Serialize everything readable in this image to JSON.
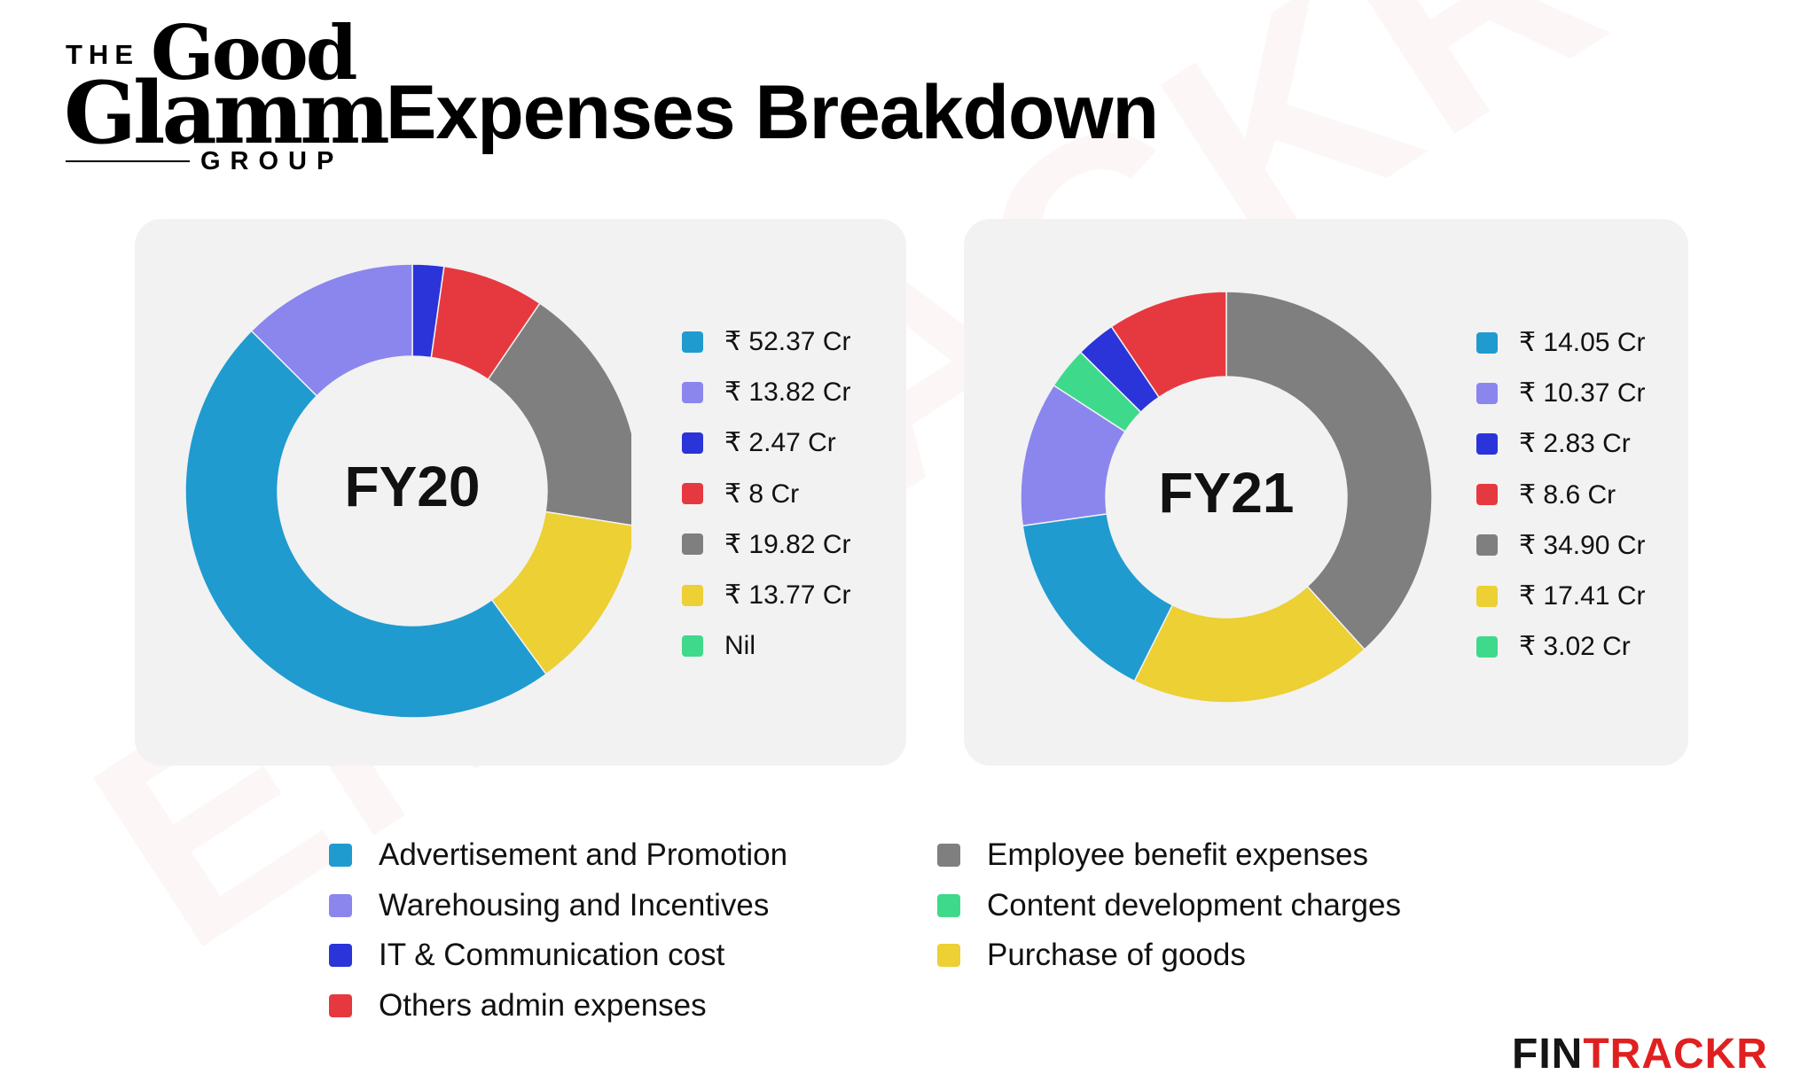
{
  "logo": {
    "the": "THE",
    "word1": "Good",
    "word2": "Glamm",
    "group": "GROUP"
  },
  "title": "Expenses Breakdown",
  "watermark": "ENTRACKR",
  "brand": {
    "part1": "FIN",
    "part2": "TRACKR"
  },
  "colors": {
    "advertisement": "#1f9bd0",
    "warehousing": "#8a86ee",
    "it": "#2a34d8",
    "others": "#e6393f",
    "employee": "#7f7f7f",
    "purchase": "#ecd034",
    "content": "#3fd98c"
  },
  "categories": [
    {
      "key": "advertisement",
      "label": "Advertisement and Promotion"
    },
    {
      "key": "warehousing",
      "label": "Warehousing and Incentives"
    },
    {
      "key": "it",
      "label": "IT & Communication cost"
    },
    {
      "key": "others",
      "label": "Others admin expenses"
    },
    {
      "key": "employee",
      "label": "Employee benefit expenses"
    },
    {
      "key": "content",
      "label": "Content development charges"
    },
    {
      "key": "purchase",
      "label": "Purchase of goods"
    }
  ],
  "chart_data": [
    {
      "type": "pie",
      "center_label": "FY20",
      "unit": "₹ Cr",
      "slices": [
        {
          "key": "advertisement",
          "value": 52.37,
          "label": "₹ 52.37 Cr"
        },
        {
          "key": "warehousing",
          "value": 13.82,
          "label": "₹ 13.82 Cr"
        },
        {
          "key": "it",
          "value": 2.47,
          "label": "₹ 2.47 Cr"
        },
        {
          "key": "others",
          "value": 8,
          "label": "₹ 8 Cr"
        },
        {
          "key": "employee",
          "value": 19.82,
          "label": "₹ 19.82 Cr"
        },
        {
          "key": "purchase",
          "value": 13.77,
          "label": "₹ 13.77 Cr"
        },
        {
          "key": "content",
          "value": 0,
          "label": "Nil"
        }
      ],
      "draw_order": [
        "it",
        "others",
        "employee",
        "purchase",
        "advertisement",
        "warehousing"
      ]
    },
    {
      "type": "pie",
      "center_label": "FY21",
      "unit": "₹ Cr",
      "slices": [
        {
          "key": "advertisement",
          "value": 14.05,
          "label": "₹ 14.05 Cr"
        },
        {
          "key": "warehousing",
          "value": 10.37,
          "label": "₹ 10.37 Cr"
        },
        {
          "key": "it",
          "value": 2.83,
          "label": "₹ 2.83 Cr"
        },
        {
          "key": "others",
          "value": 8.6,
          "label": "₹ 8.6 Cr"
        },
        {
          "key": "employee",
          "value": 34.9,
          "label": "₹ 34.90 Cr"
        },
        {
          "key": "purchase",
          "value": 17.41,
          "label": "₹ 17.41 Cr"
        },
        {
          "key": "content",
          "value": 3.02,
          "label": "₹ 3.02 Cr"
        }
      ],
      "draw_order": [
        "employee",
        "purchase",
        "advertisement",
        "warehousing",
        "content",
        "it",
        "others"
      ]
    }
  ]
}
